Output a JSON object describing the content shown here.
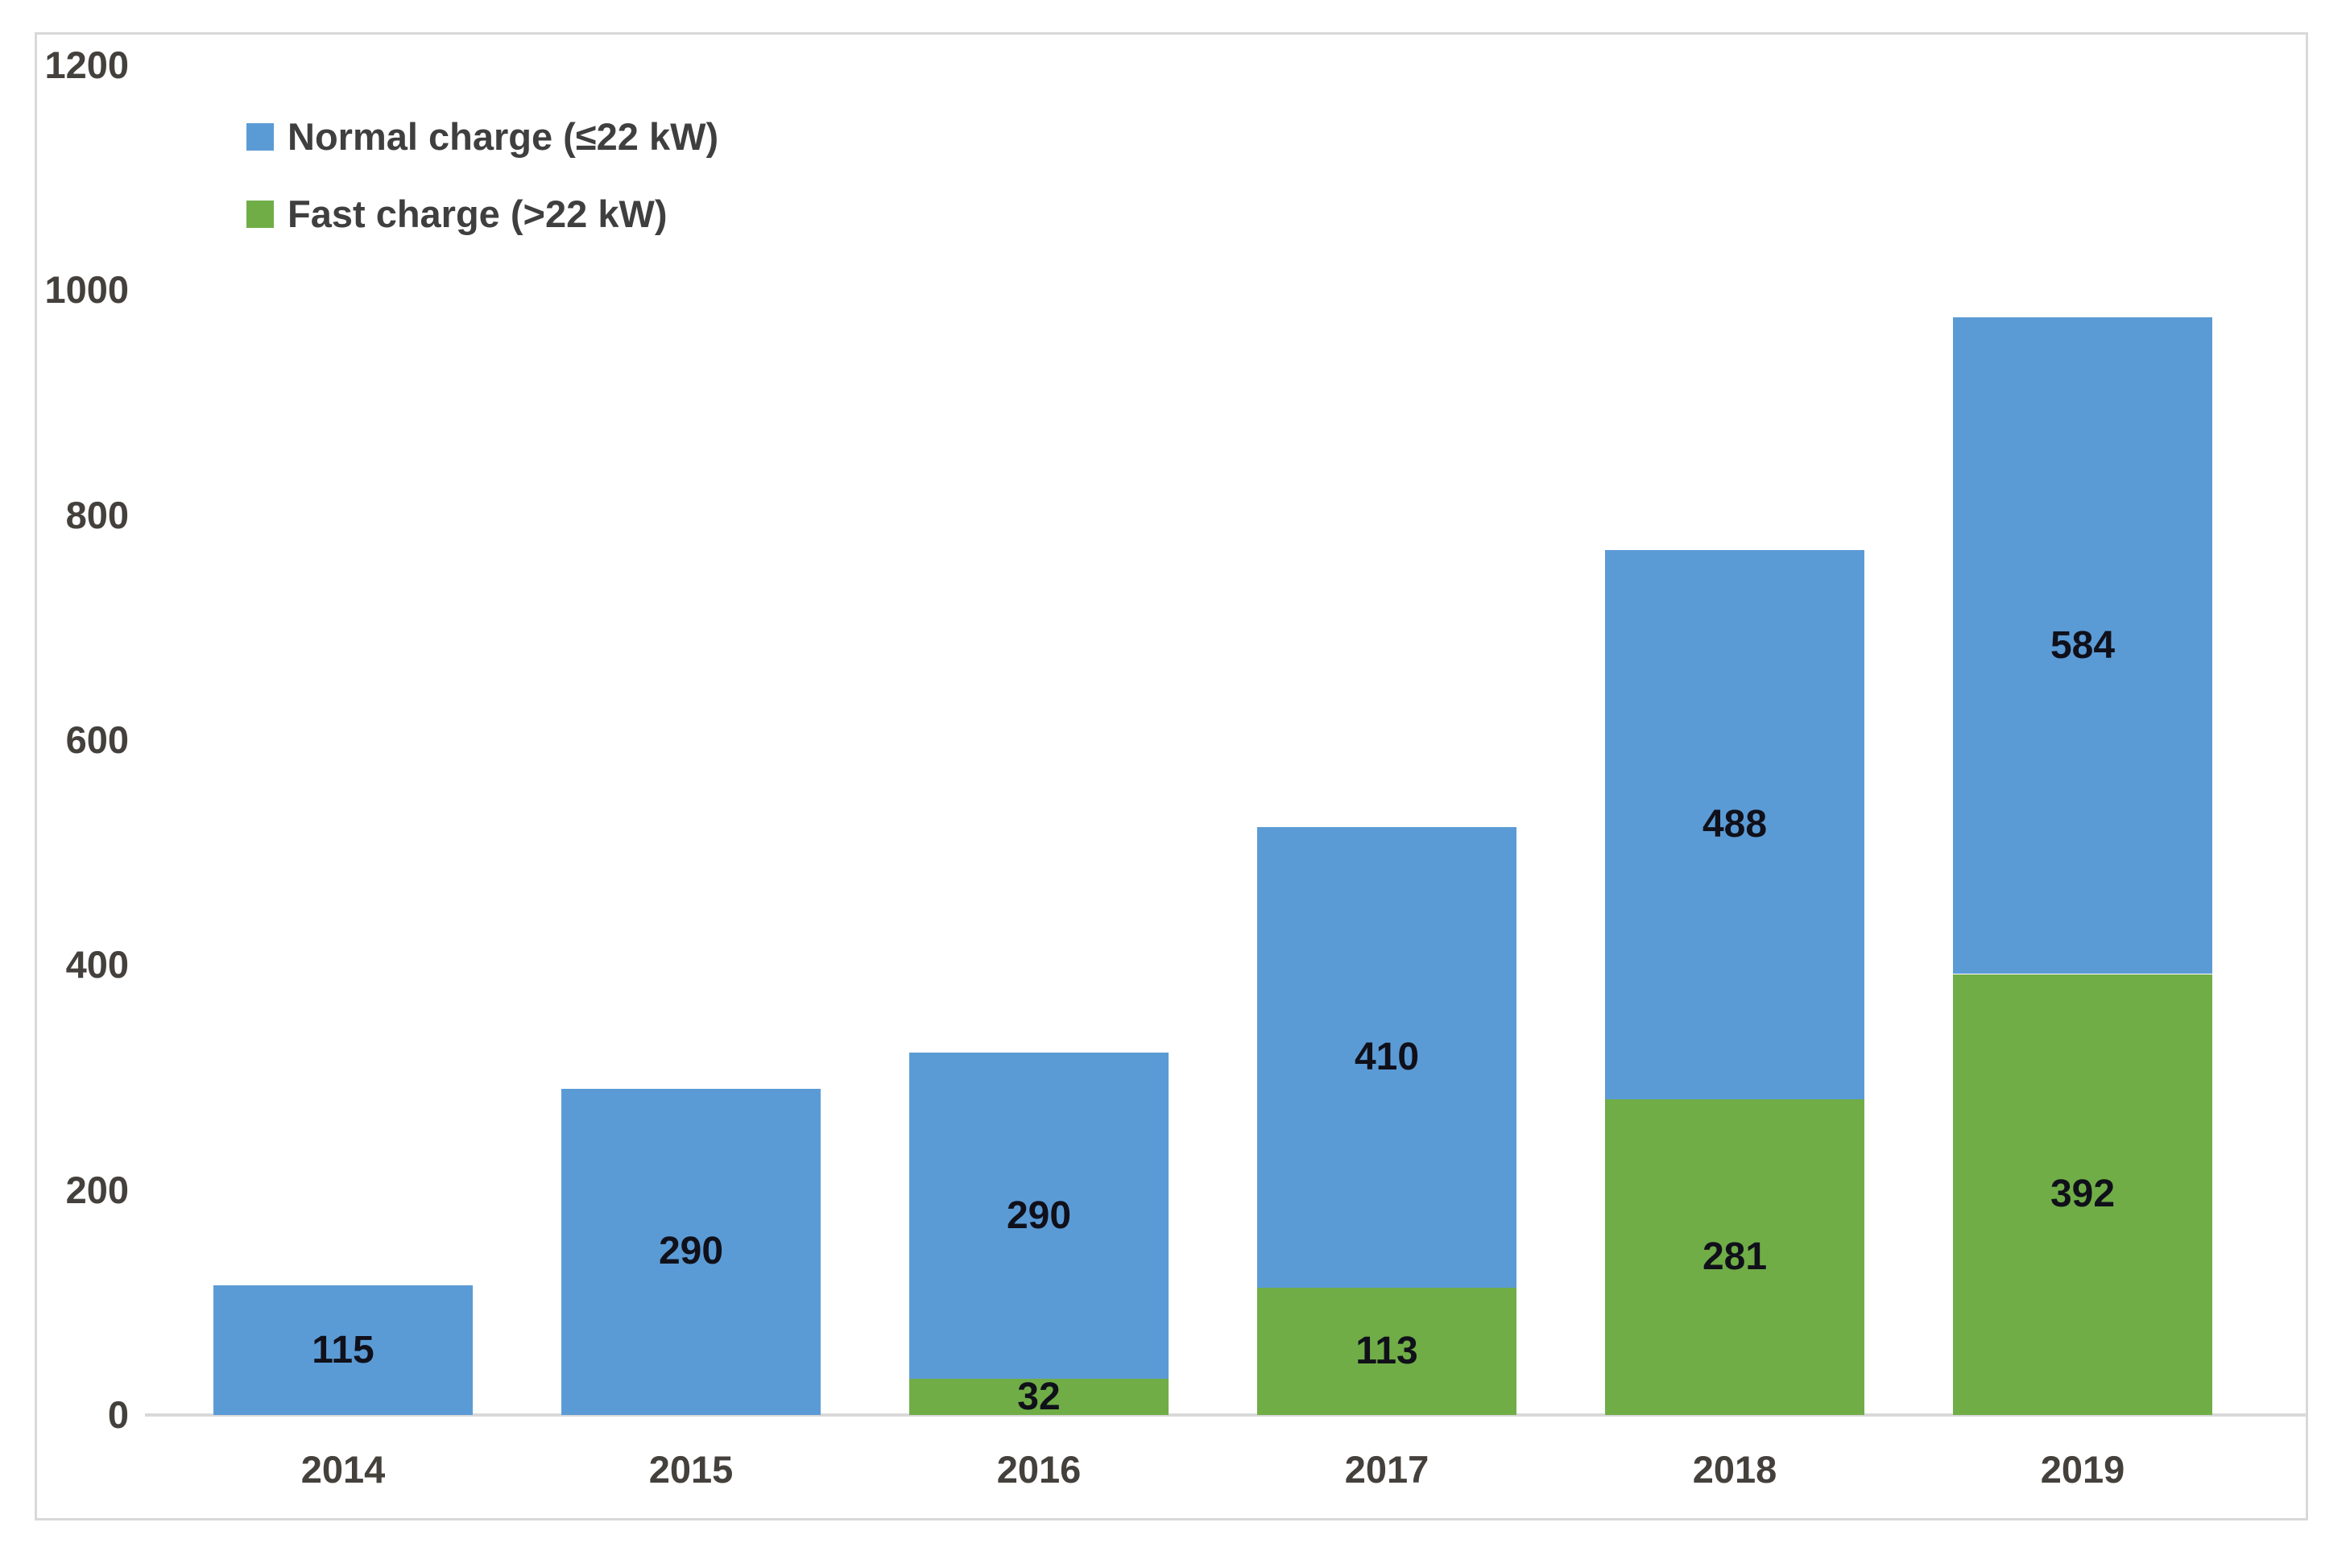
{
  "chart_data": {
    "type": "bar",
    "stacked": true,
    "title": "",
    "xlabel": "",
    "ylabel": "",
    "categories": [
      "2014",
      "2015",
      "2016",
      "2017",
      "2018",
      "2019"
    ],
    "series": [
      {
        "name": "Normal charge (≤22 kW)",
        "color": "#5B9BD5",
        "stack_level": 2,
        "values": [
          115,
          290,
          290,
          410,
          488,
          584
        ]
      },
      {
        "name": "Fast charge (>22 kW)",
        "color": "#70AD47",
        "stack_level": 1,
        "values": [
          0,
          0,
          32,
          113,
          281,
          392
        ]
      }
    ],
    "stack_totals": [
      115,
      290,
      322,
      523,
      769,
      976
    ],
    "ylim": [
      0,
      1200
    ],
    "yticks": [
      "0",
      "200",
      "400",
      "600",
      "800",
      "1000",
      "1200"
    ],
    "grid": false,
    "legend_position": "top-left",
    "data_labels": "centered in segment, zero values unlabeled"
  },
  "colors": {
    "bar_blue": "#5B9BD5",
    "bar_green": "#70AD47",
    "axis_line": "#d9d9d9",
    "figure_border": "#d9d9d9",
    "tick_text": "#44403c",
    "data_label_text": "#10101a",
    "legend_text": "#3f3f3f",
    "background": "#ffffff"
  }
}
